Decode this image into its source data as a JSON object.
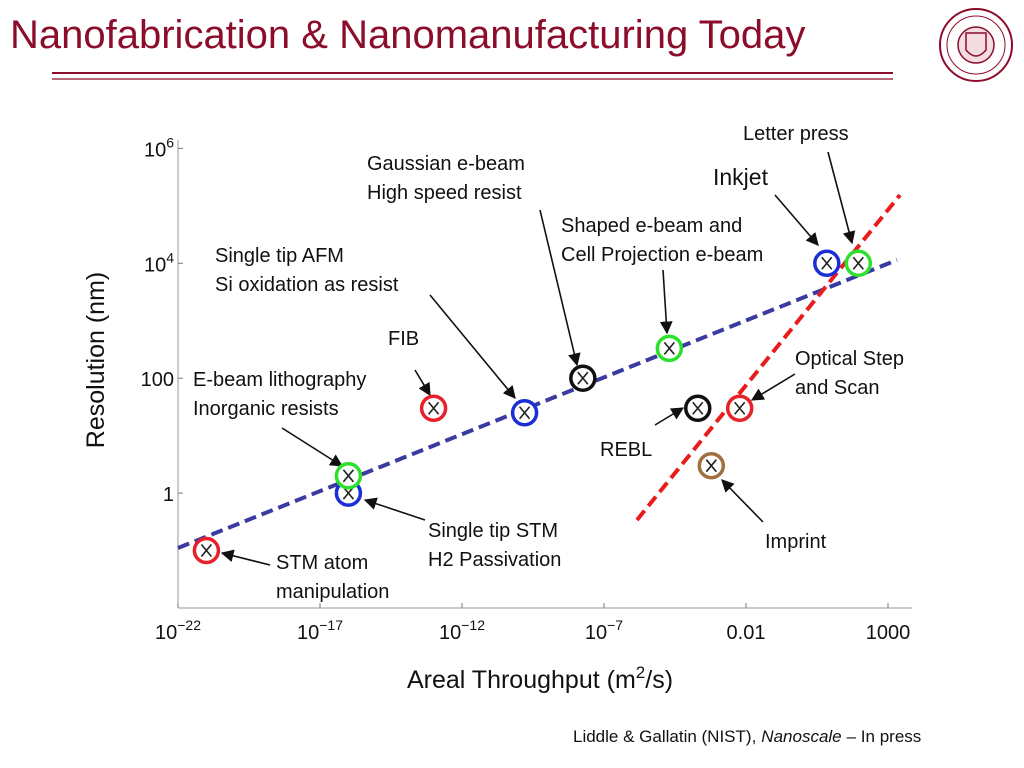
{
  "header": {
    "title": "Nanofabrication & Nanomanufacturing Today"
  },
  "footer": {
    "author": "Liddle & Gallatin (NIST),",
    "journal": "Nanoscale",
    "note": "– In press"
  },
  "chart_data": {
    "type": "scatter",
    "xlabel": [
      "Areal Throughput (m",
      "2",
      "/s)"
    ],
    "ylabel": "Resolution (nm)",
    "xscale": "log",
    "yscale": "log",
    "xlim": [
      1e-22,
      7000
    ],
    "ylim": [
      0.01,
      1400000
    ],
    "xticks": [
      {
        "value": 1e-22,
        "label": "10",
        "exponent": "−22"
      },
      {
        "value": 1e-17,
        "label": "10",
        "exponent": "−17"
      },
      {
        "value": 1e-12,
        "label": "10",
        "exponent": "−12"
      },
      {
        "value": 1e-07,
        "label": "10",
        "exponent": "−7"
      },
      0.01,
      1000
    ],
    "yticks": [
      1,
      100,
      {
        "value": 10000,
        "label": "10",
        "exponent": "4"
      },
      {
        "value": 1000000,
        "label": "10",
        "exponent": "6"
      }
    ],
    "series": [
      {
        "color": "#e8202a",
        "x": [
          1e-21,
          1e-13,
          0.006
        ],
        "values": [
          0.1,
          30,
          30
        ]
      },
      {
        "color": "#1b2fd6",
        "x": [
          1e-16,
          1.6e-10,
          7
        ],
        "values": [
          1,
          25,
          10000
        ]
      },
      {
        "color": "#2ee02e",
        "x": [
          1e-16,
          2e-05,
          90
        ],
        "values": [
          2,
          330,
          10000
        ]
      },
      {
        "color": "#111111",
        "x": [
          1.8e-08,
          0.0002
        ],
        "values": [
          100,
          30
        ]
      },
      {
        "color": "#a07040",
        "x": [
          0.0006
        ],
        "values": [
          3
        ]
      }
    ],
    "annotations": [
      [
        "Letter press"
      ],
      [
        "Inkjet"
      ],
      [
        "Gaussian e-beam",
        "High speed resist"
      ],
      [
        "Shaped e-beam and",
        "Cell Projection e-beam"
      ],
      [
        "Single tip AFM",
        "Si oxidation as resist"
      ],
      [
        "FIB"
      ],
      [
        "E-beam lithography",
        "Inorganic resists"
      ],
      [
        "Optical Step",
        "and Scan"
      ],
      [
        "REBL"
      ],
      [
        "Imprint"
      ],
      [
        "Single tip STM",
        "H2 Passivation"
      ],
      [
        "STM atom",
        "manipulation"
      ]
    ]
  }
}
